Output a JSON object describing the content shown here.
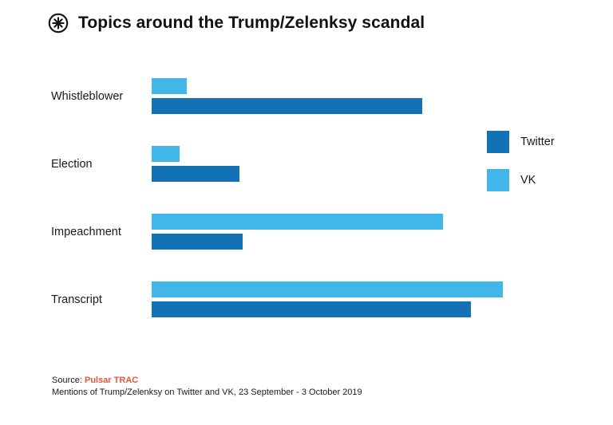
{
  "header": {
    "title": "Topics around the Trump/Zelenksy scandal",
    "logo": "pulsar-asterisk-icon"
  },
  "footer": {
    "source_label": "Source:",
    "source_name": "Pulsar TRAC",
    "caption": "Mentions of Trump/Zelenksy on Twitter and VK, 23 September - 3  October 2019"
  },
  "colors": {
    "twitter": "#1272b5",
    "vk": "#41b6e8",
    "source_accent": "#ee5340",
    "text": "#1a1a1a"
  },
  "chart_data": {
    "type": "bar",
    "orientation": "horizontal",
    "title": "Topics around the Trump/Zelenksy scandal",
    "categories": [
      "Whistleblower",
      "Election",
      "Impeachment",
      "Transcript"
    ],
    "series": [
      {
        "name": "VK",
        "color": "#41b6e8",
        "values": [
          10,
          8,
          83,
          100
        ]
      },
      {
        "name": "Twitter",
        "color": "#1272b5",
        "values": [
          77,
          25,
          26,
          91
        ]
      }
    ],
    "xlim": [
      0,
      100
    ],
    "value_units": "relative mentions (unlabeled axis)",
    "grid": false,
    "legend_position": "right",
    "legend": [
      {
        "label": "Twitter",
        "color": "#1272b5"
      },
      {
        "label": "VK",
        "color": "#41b6e8"
      }
    ],
    "caption": "Mentions of Trump/Zelenksy on Twitter and VK, 23 September - 3  October 2019",
    "source": "Pulsar TRAC"
  }
}
